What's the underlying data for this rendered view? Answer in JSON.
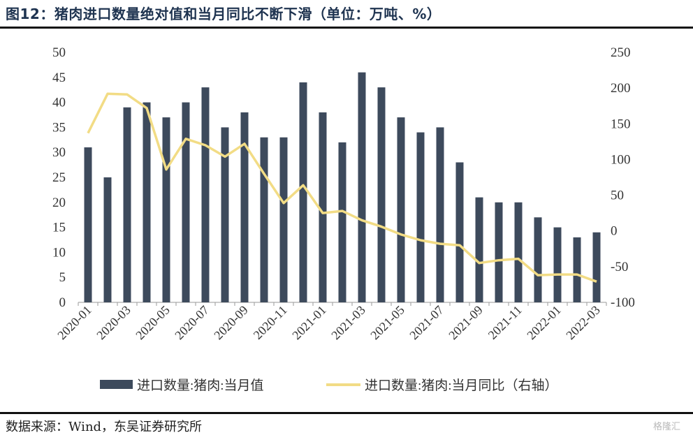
{
  "header": {
    "title": "图12：猪肉进口数量绝对值和当月同比不断下滑（单位：万吨、%）"
  },
  "footer": {
    "source": "数据来源：Wind，东吴证券研究所",
    "watermark": "格隆汇"
  },
  "colors": {
    "bar": "#3d4a5c",
    "line": "#f2dc85",
    "title": "#1e3350"
  },
  "chart_data": {
    "type": "bar+line",
    "categories": [
      "2020-01",
      "2020-02",
      "2020-03",
      "2020-04",
      "2020-05",
      "2020-06",
      "2020-07",
      "2020-08",
      "2020-09",
      "2020-10",
      "2020-11",
      "2020-12",
      "2021-01",
      "2021-02",
      "2021-03",
      "2021-04",
      "2021-05",
      "2021-06",
      "2021-07",
      "2021-08",
      "2021-09",
      "2021-10",
      "2021-11",
      "2021-12",
      "2022-01",
      "2022-02",
      "2022-03"
    ],
    "x_tick_labels": [
      "2020-01",
      "2020-03",
      "2020-05",
      "2020-07",
      "2020-09",
      "2020-11",
      "2021-01",
      "2021-03",
      "2021-05",
      "2021-07",
      "2021-09",
      "2021-11",
      "2022-01",
      "2022-03"
    ],
    "series": [
      {
        "name": "进口数量:猪肉:当月值",
        "type": "bar",
        "axis": "left",
        "values": [
          31,
          25,
          39,
          40,
          37,
          40,
          43,
          35,
          38,
          33,
          33,
          44,
          38,
          32,
          46,
          43,
          37,
          34,
          35,
          28,
          21,
          20,
          20,
          17,
          15,
          13,
          14
        ]
      },
      {
        "name": "进口数量:猪肉:当月同比（右轴）",
        "type": "line",
        "axis": "right",
        "values": [
          137,
          192,
          191,
          172,
          86,
          129,
          120,
          104,
          122,
          80,
          39,
          64,
          25,
          28,
          15,
          6,
          -5,
          -13,
          -18,
          -20,
          -45,
          -41,
          -39,
          -62,
          -61,
          -61,
          -71
        ]
      }
    ],
    "y_left": {
      "min": 0,
      "max": 50,
      "ticks": [
        0,
        5,
        10,
        15,
        20,
        25,
        30,
        35,
        40,
        45,
        50
      ]
    },
    "y_right": {
      "min": -100,
      "max": 250,
      "ticks": [
        -100,
        -50,
        0,
        50,
        100,
        150,
        200,
        250
      ]
    },
    "legend_position": "bottom",
    "grid": false
  }
}
